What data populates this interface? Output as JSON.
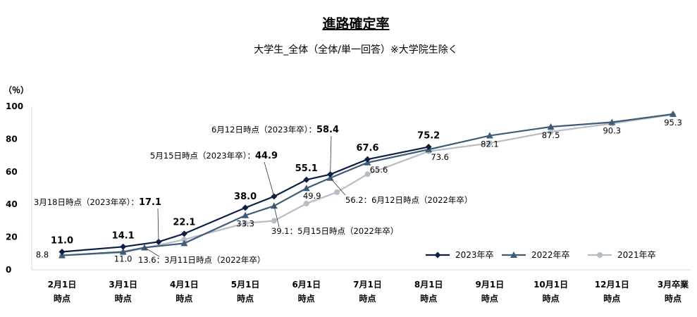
{
  "chart_data": {
    "type": "line",
    "title": "進路確定率",
    "subtitle": "大学生_全体（全体/単一回答）※大学院生除く",
    "ylabel": "（％）",
    "ylim": [
      0,
      100
    ],
    "yticks": [
      "0",
      "20",
      "40",
      "60",
      "80",
      "100"
    ],
    "categories": [
      [
        "2月1日",
        "時点"
      ],
      [
        "3月1日",
        "時点"
      ],
      [
        "4月1日",
        "時点"
      ],
      [
        "5月1日",
        "時点"
      ],
      [
        "6月1日",
        "時点"
      ],
      [
        "7月1日",
        "時点"
      ],
      [
        "8月1日",
        "時点"
      ],
      [
        "9月1日",
        "時点"
      ],
      [
        "10月1日",
        "時点"
      ],
      [
        "12月1日",
        "時点"
      ],
      [
        "3月卒業",
        "時点"
      ]
    ],
    "legend_position": "bottom-right",
    "grid": false,
    "series": [
      {
        "name": "2023年卒",
        "color": "#0d1f45",
        "marker": "diamond",
        "points": [
          {
            "x": 0,
            "y": 11.0,
            "label": "11.0"
          },
          {
            "x": 1,
            "y": 14.1,
            "label": "14.1"
          },
          {
            "x": 1.58,
            "y": 17.1
          },
          {
            "x": 2,
            "y": 22.1,
            "label": "22.1"
          },
          {
            "x": 3,
            "y": 38.0,
            "label": "38.0"
          },
          {
            "x": 3.47,
            "y": 44.9
          },
          {
            "x": 4,
            "y": 55.1,
            "label": "55.1"
          },
          {
            "x": 4.39,
            "y": 58.4
          },
          {
            "x": 5,
            "y": 67.6,
            "label": "67.6"
          },
          {
            "x": 6,
            "y": 75.2,
            "label": "75.2"
          }
        ]
      },
      {
        "name": "2022年卒",
        "color": "#3e5b78",
        "marker": "triangle",
        "points": [
          {
            "x": 0,
            "y": 8.8
          },
          {
            "x": 1,
            "y": 11.0
          },
          {
            "x": 1.35,
            "y": 13.6
          },
          {
            "x": 2,
            "y": 16.2
          },
          {
            "x": 3,
            "y": 33.3
          },
          {
            "x": 3.47,
            "y": 39.1
          },
          {
            "x": 4,
            "y": 49.9
          },
          {
            "x": 4.39,
            "y": 56.2
          },
          {
            "x": 5,
            "y": 65.6
          },
          {
            "x": 6,
            "y": 73.6
          },
          {
            "x": 7,
            "y": 82.1
          },
          {
            "x": 8,
            "y": 87.5
          },
          {
            "x": 9,
            "y": 90.3
          },
          {
            "x": 10,
            "y": 95.3
          }
        ]
      },
      {
        "name": "2021年卒",
        "color": "#b5bdc8",
        "marker": "circle",
        "points": [
          {
            "x": 0,
            "y": 8.8
          },
          {
            "x": 1,
            "y": 10.5
          },
          {
            "x": 2,
            "y": 18.5
          },
          {
            "x": 3,
            "y": 28.5
          },
          {
            "x": 3.47,
            "y": 30.0
          },
          {
            "x": 4,
            "y": 40.5
          },
          {
            "x": 4.5,
            "y": 47.5
          },
          {
            "x": 5,
            "y": 58.5
          },
          {
            "x": 6,
            "y": 72.5
          },
          {
            "x": 7,
            "y": 77.5
          },
          {
            "x": 8,
            "y": 84.5
          },
          {
            "x": 9,
            "y": 89.5
          },
          {
            "x": 10,
            "y": 95.0
          }
        ]
      }
    ],
    "data_labels": [
      {
        "x": 0,
        "y": 8.8,
        "text": "8.8"
      },
      {
        "x": 1,
        "y": 11.0,
        "text": "11.0"
      },
      {
        "x": 3,
        "y": 33.3,
        "text": "33.3"
      },
      {
        "x": 4,
        "y": 49.9,
        "text": "49.9"
      },
      {
        "x": 5,
        "y": 65.6,
        "text": "65.6"
      },
      {
        "x": 6,
        "y": 73.6,
        "text": "73.6"
      },
      {
        "x": 7,
        "y": 82.1,
        "text": "82.1"
      },
      {
        "x": 8,
        "y": 87.5,
        "text": "87.5"
      },
      {
        "x": 9,
        "y": 90.3,
        "text": "90.3"
      },
      {
        "x": 10,
        "y": 95.3,
        "text": "95.3"
      }
    ],
    "annotations": [
      {
        "pre": "3月18日時点（2023年卒）：",
        "value": "17.1",
        "x": 1.58,
        "y": 17.1
      },
      {
        "pre": "5月15日時点（2023年卒）：",
        "value": "44.9",
        "x": 3.47,
        "y": 44.9
      },
      {
        "pre": "6月12日時点（2023年卒）：",
        "value": "58.4",
        "x": 4.39,
        "y": 58.4
      },
      {
        "pre": "13.6：3月11日時点（2022年卒）",
        "value": "",
        "x": 1.35,
        "y": 13.6
      },
      {
        "pre": "39.1：5月15日時点（2022年卒）",
        "value": "",
        "x": 3.47,
        "y": 39.1
      },
      {
        "pre": "56.2：6月12日時点（2022年卒）",
        "value": "",
        "x": 4.39,
        "y": 56.2
      }
    ]
  }
}
